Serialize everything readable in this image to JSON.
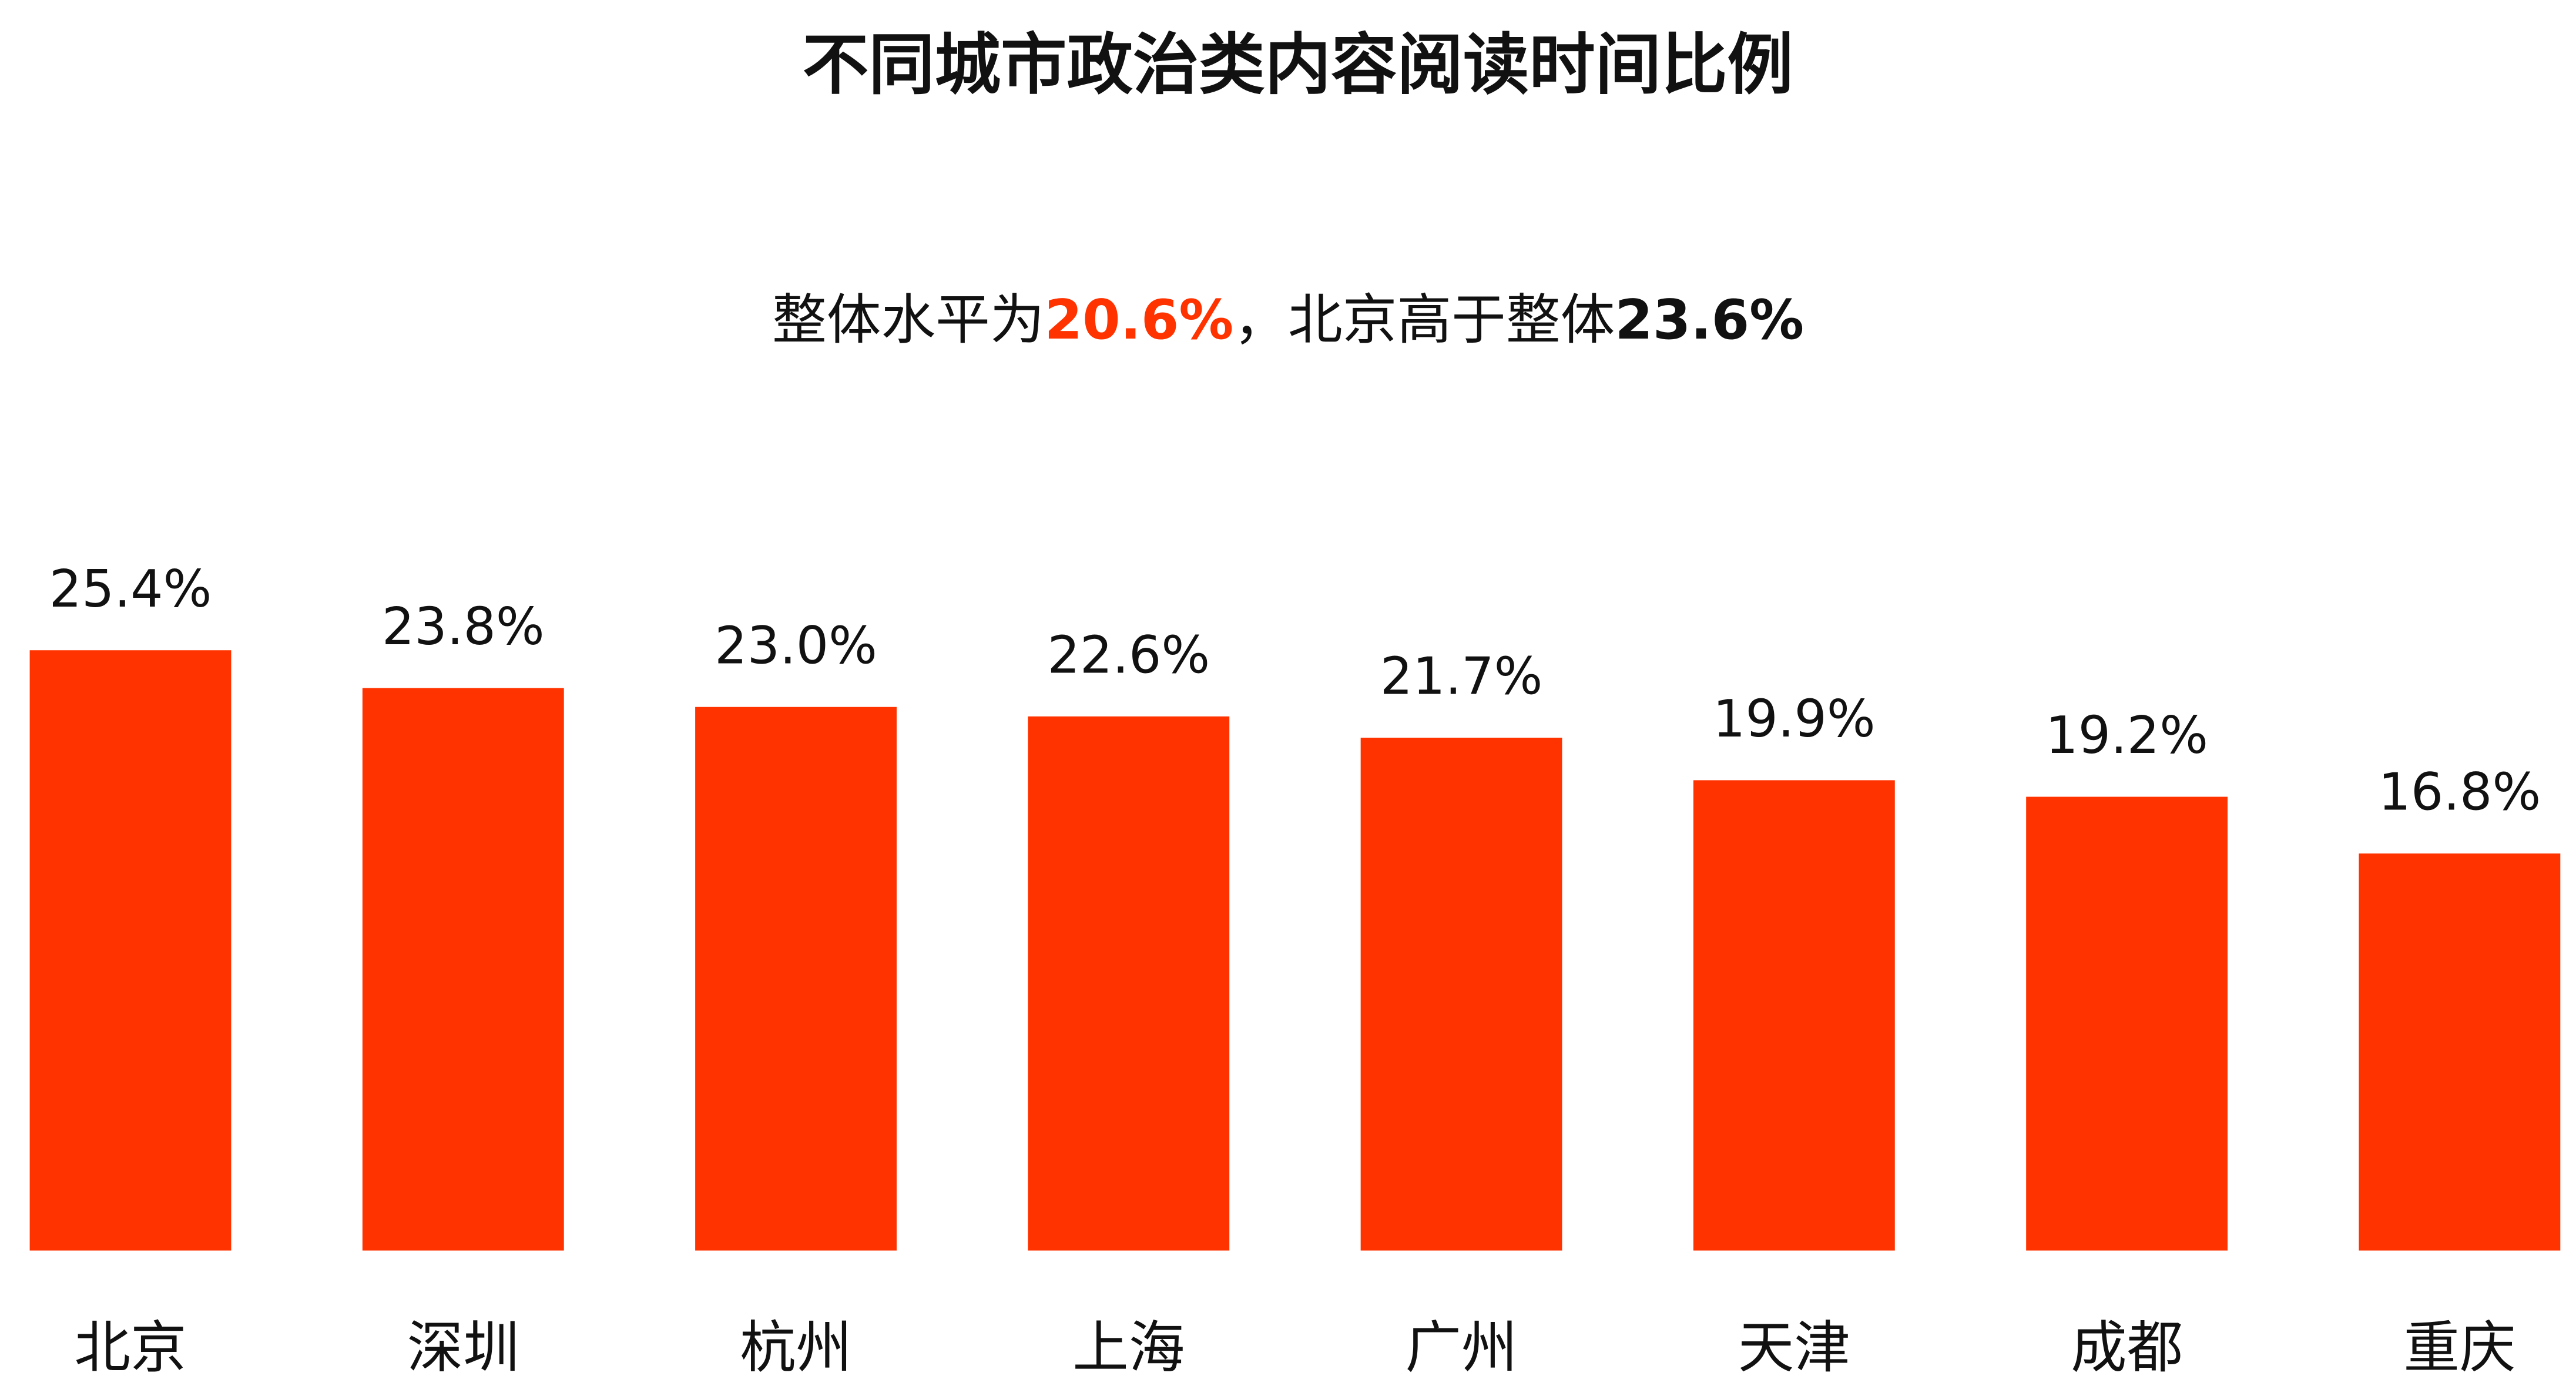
{
  "chart_data": {
    "type": "bar",
    "title": "不同城市政治类内容阅读时间比例",
    "subtitle": [
      "整体水平为",
      "20.6%",
      "，北京高于整体",
      "23.6%"
    ],
    "categories": [
      "北京",
      "深圳",
      "杭州",
      "上海",
      "广州",
      "天津",
      "成都",
      "重庆"
    ],
    "values": [
      25.4,
      23.8,
      23.0,
      22.6,
      21.7,
      19.9,
      19.2,
      16.8
    ],
    "value_labels": [
      "25.4%",
      "23.8%",
      "23.0%",
      "22.6%",
      "21.7%",
      "19.9%",
      "19.2%",
      "16.8%"
    ],
    "color": "#ff3300",
    "highlight_color": "#ff3300",
    "ylim": [
      0,
      26
    ]
  }
}
